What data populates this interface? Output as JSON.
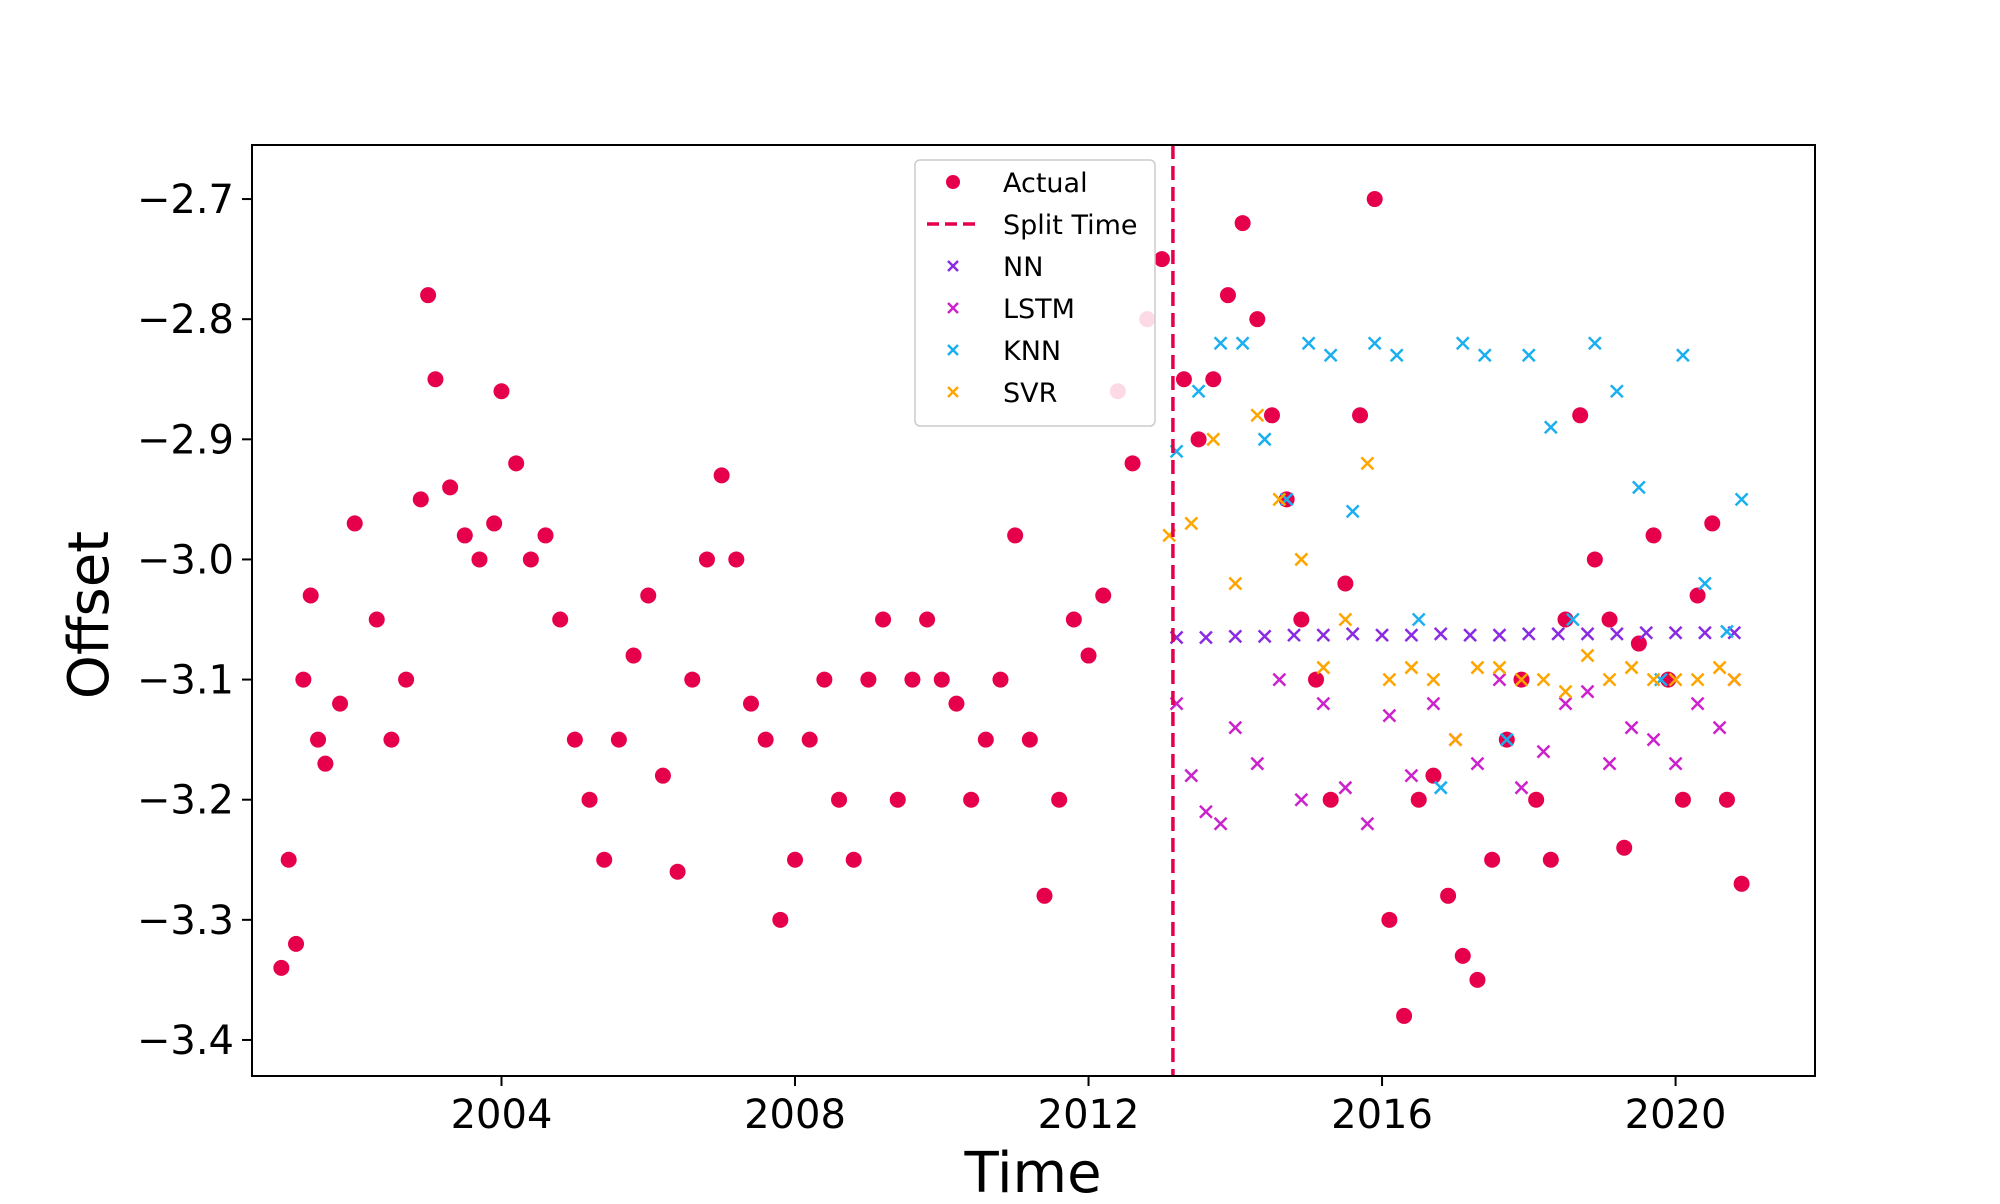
{
  "chart_data": {
    "type": "scatter",
    "title": "",
    "xlabel": "Time",
    "ylabel": "Offset",
    "xlim": [
      2000.6,
      2021.9
    ],
    "ylim": [
      -3.43,
      -2.655
    ],
    "x_ticks": [
      2004,
      2008,
      2012,
      2016,
      2020
    ],
    "x_tick_labels": [
      "2004",
      "2008",
      "2012",
      "2016",
      "2020"
    ],
    "y_ticks": [
      -2.7,
      -2.8,
      -2.9,
      -3.0,
      -3.1,
      -3.2,
      -3.3,
      -3.4
    ],
    "y_tick_labels": [
      "−2.7",
      "−2.8",
      "−2.9",
      "−3.0",
      "−3.1",
      "−3.2",
      "−3.3",
      "−3.4"
    ],
    "grid": false,
    "legend_position": "top-center",
    "split_time": 2013.15,
    "legend": [
      {
        "label": "Actual",
        "marker": "circle",
        "color": "#e6004c"
      },
      {
        "label": "Split Time",
        "marker": "dashed-line",
        "color": "#e6004c"
      },
      {
        "label": "NN",
        "marker": "x",
        "color": "#8a2be2"
      },
      {
        "label": "LSTM",
        "marker": "x",
        "color": "#cc22cc"
      },
      {
        "label": "KNN",
        "marker": "x",
        "color": "#1ab0f0"
      },
      {
        "label": "SVR",
        "marker": "x",
        "color": "#ffa500"
      }
    ],
    "series": [
      {
        "name": "Actual",
        "color": "#e6004c",
        "marker": "circle",
        "x": [
          2001.0,
          2001.1,
          2001.2,
          2001.3,
          2001.4,
          2001.5,
          2001.6,
          2001.8,
          2002.0,
          2002.3,
          2002.5,
          2002.7,
          2002.9,
          2003.0,
          2003.1,
          2003.3,
          2003.5,
          2003.7,
          2003.9,
          2004.0,
          2004.2,
          2004.4,
          2004.6,
          2004.8,
          2005.0,
          2005.2,
          2005.4,
          2005.6,
          2005.8,
          2006.0,
          2006.2,
          2006.4,
          2006.6,
          2006.8,
          2007.0,
          2007.2,
          2007.4,
          2007.6,
          2007.8,
          2008.0,
          2008.2,
          2008.4,
          2008.6,
          2008.8,
          2009.0,
          2009.2,
          2009.4,
          2009.6,
          2009.8,
          2010.0,
          2010.2,
          2010.4,
          2010.6,
          2010.8,
          2011.0,
          2011.2,
          2011.4,
          2011.6,
          2011.8,
          2012.0,
          2012.2,
          2012.4,
          2012.6,
          2012.8,
          2013.0,
          2013.3,
          2013.5,
          2013.7,
          2013.9,
          2014.1,
          2014.3,
          2014.5,
          2014.7,
          2014.9,
          2015.1,
          2015.3,
          2015.5,
          2015.7,
          2015.9,
          2016.1,
          2016.3,
          2016.5,
          2016.7,
          2016.9,
          2017.1,
          2017.3,
          2017.5,
          2017.7,
          2017.9,
          2018.1,
          2018.3,
          2018.5,
          2018.7,
          2018.9,
          2019.1,
          2019.3,
          2019.5,
          2019.7,
          2019.9,
          2020.1,
          2020.3,
          2020.5,
          2020.7,
          2020.9
        ],
        "y": [
          -3.34,
          -3.25,
          -3.32,
          -3.1,
          -3.03,
          -3.15,
          -3.17,
          -3.12,
          -2.97,
          -3.05,
          -3.15,
          -3.1,
          -2.95,
          -2.78,
          -2.85,
          -2.94,
          -2.98,
          -3.0,
          -2.97,
          -2.86,
          -2.92,
          -3.0,
          -2.98,
          -3.05,
          -3.15,
          -3.2,
          -3.25,
          -3.15,
          -3.08,
          -3.03,
          -3.18,
          -3.26,
          -3.1,
          -3.0,
          -2.93,
          -3.0,
          -3.12,
          -3.15,
          -3.3,
          -3.25,
          -3.15,
          -3.1,
          -3.2,
          -3.25,
          -3.1,
          -3.05,
          -3.2,
          -3.1,
          -3.05,
          -3.1,
          -3.12,
          -3.2,
          -3.15,
          -3.1,
          -2.98,
          -3.15,
          -3.28,
          -3.2,
          -3.05,
          -3.08,
          -3.03,
          -2.86,
          -2.92,
          -2.8,
          -2.75,
          -2.85,
          -2.9,
          -2.85,
          -2.78,
          -2.72,
          -2.8,
          -2.88,
          -2.95,
          -3.05,
          -3.1,
          -3.2,
          -3.02,
          -2.88,
          -2.7,
          -3.3,
          -3.38,
          -3.2,
          -3.18,
          -3.28,
          -3.33,
          -3.35,
          -3.25,
          -3.15,
          -3.1,
          -3.2,
          -3.25,
          -3.05,
          -2.88,
          -3.0,
          -3.05,
          -3.24,
          -3.07,
          -2.98,
          -3.1,
          -3.2,
          -3.03,
          -2.97,
          -3.2,
          -3.27
        ]
      },
      {
        "name": "NN",
        "color": "#8a2be2",
        "marker": "x",
        "x": [
          2013.2,
          2013.6,
          2014.0,
          2014.4,
          2014.8,
          2015.2,
          2015.6,
          2016.0,
          2016.4,
          2016.8,
          2017.2,
          2017.6,
          2018.0,
          2018.4,
          2018.8,
          2019.2,
          2019.6,
          2020.0,
          2020.4,
          2020.8
        ],
        "y": [
          -3.065,
          -3.065,
          -3.064,
          -3.064,
          -3.063,
          -3.063,
          -3.062,
          -3.063,
          -3.063,
          -3.062,
          -3.063,
          -3.063,
          -3.062,
          -3.062,
          -3.062,
          -3.062,
          -3.061,
          -3.061,
          -3.061,
          -3.061
        ]
      },
      {
        "name": "LSTM",
        "color": "#cc22cc",
        "marker": "x",
        "x": [
          2013.2,
          2013.4,
          2013.6,
          2013.8,
          2014.0,
          2014.3,
          2014.6,
          2014.9,
          2015.2,
          2015.5,
          2015.8,
          2016.1,
          2016.4,
          2016.7,
          2017.0,
          2017.3,
          2017.6,
          2017.9,
          2018.2,
          2018.5,
          2018.8,
          2019.1,
          2019.4,
          2019.7,
          2020.0,
          2020.3,
          2020.6,
          2020.8
        ],
        "y": [
          -3.12,
          -3.18,
          -3.21,
          -3.22,
          -3.14,
          -3.17,
          -3.1,
          -3.2,
          -3.12,
          -3.19,
          -3.22,
          -3.13,
          -3.18,
          -3.12,
          -3.15,
          -3.17,
          -3.1,
          -3.19,
          -3.16,
          -3.12,
          -3.11,
          -3.17,
          -3.14,
          -3.15,
          -3.17,
          -3.12,
          -3.14,
          -3.1
        ]
      },
      {
        "name": "KNN",
        "color": "#1ab0f0",
        "marker": "x",
        "x": [
          2013.2,
          2013.5,
          2013.8,
          2014.1,
          2014.4,
          2014.7,
          2015.0,
          2015.3,
          2015.6,
          2015.9,
          2016.2,
          2016.5,
          2016.8,
          2017.1,
          2017.4,
          2017.7,
          2018.0,
          2018.3,
          2018.6,
          2018.9,
          2019.2,
          2019.5,
          2019.8,
          2020.1,
          2020.4,
          2020.7,
          2020.9
        ],
        "y": [
          -2.91,
          -2.86,
          -2.82,
          -2.82,
          -2.9,
          -2.95,
          -2.82,
          -2.83,
          -2.96,
          -2.82,
          -2.83,
          -3.05,
          -3.19,
          -2.82,
          -2.83,
          -3.15,
          -2.83,
          -2.89,
          -3.05,
          -2.82,
          -2.86,
          -2.94,
          -3.1,
          -2.83,
          -3.02,
          -3.06,
          -2.95
        ]
      },
      {
        "name": "SVR",
        "color": "#ffa500",
        "marker": "x",
        "x": [
          2013.1,
          2013.4,
          2013.7,
          2014.0,
          2014.3,
          2014.6,
          2014.9,
          2015.2,
          2015.5,
          2015.8,
          2016.1,
          2016.4,
          2016.7,
          2017.0,
          2017.3,
          2017.6,
          2017.9,
          2018.2,
          2018.5,
          2018.8,
          2019.1,
          2019.4,
          2019.7,
          2020.0,
          2020.3,
          2020.6,
          2020.8
        ],
        "y": [
          -2.98,
          -2.97,
          -2.9,
          -3.02,
          -2.88,
          -2.95,
          -3.0,
          -3.09,
          -3.05,
          -2.92,
          -3.1,
          -3.09,
          -3.1,
          -3.15,
          -3.09,
          -3.09,
          -3.1,
          -3.1,
          -3.11,
          -3.08,
          -3.1,
          -3.09,
          -3.1,
          -3.1,
          -3.1,
          -3.09,
          -3.1
        ]
      }
    ]
  }
}
